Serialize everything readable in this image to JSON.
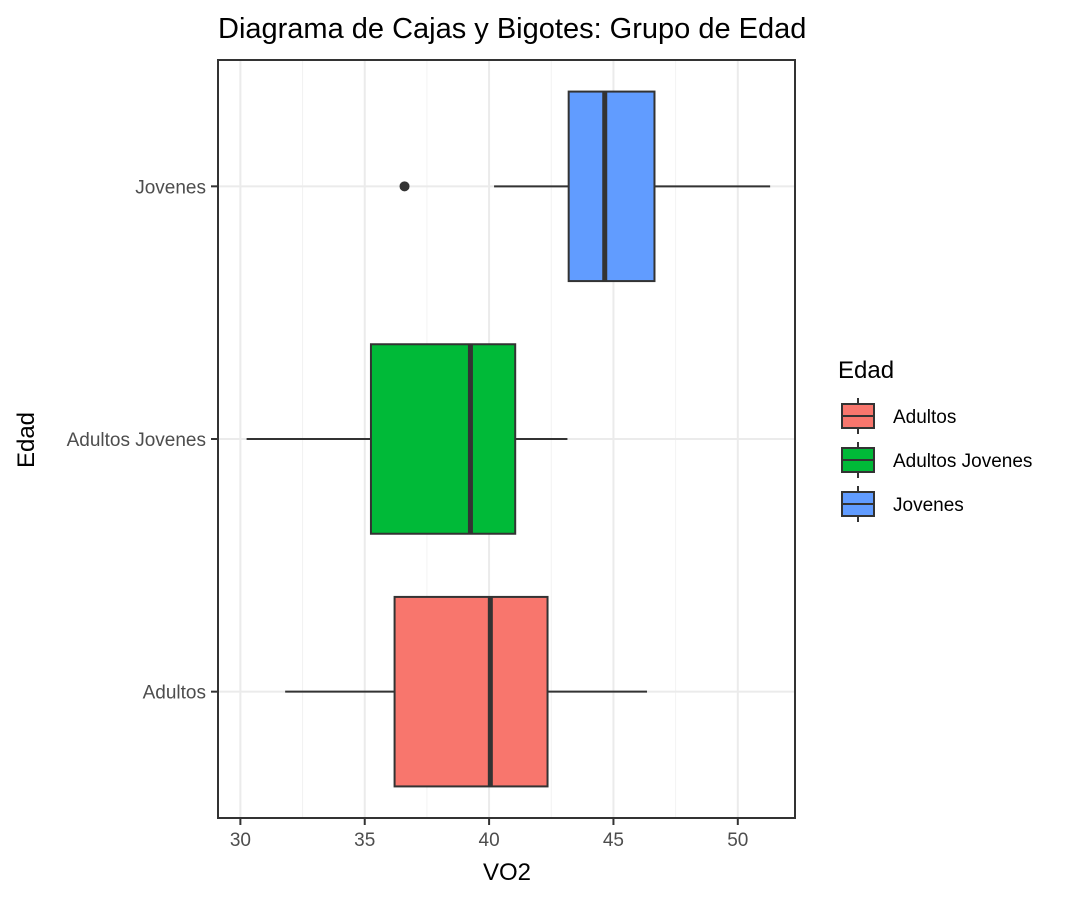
{
  "chart_data": {
    "type": "boxplot",
    "orientation": "horizontal",
    "title": "Diagrama de Cajas y Bigotes: Grupo de Edad",
    "xlabel": "VO2",
    "ylabel": "Edad",
    "xlim": [
      29.1,
      52.3
    ],
    "x_ticks": [
      30,
      35,
      40,
      45,
      50
    ],
    "grid": true,
    "legend": {
      "title": "Edad",
      "position": "right"
    },
    "categories": [
      "Adultos",
      "Adultos Jovenes",
      "Jovenes"
    ],
    "series": [
      {
        "name": "Adultos",
        "color": "#F8766D",
        "whisker_low": 31.8,
        "q1": 36.2,
        "median": 40.05,
        "q3": 42.35,
        "whisker_high": 46.35,
        "outliers": []
      },
      {
        "name": "Adultos Jovenes",
        "color": "#00BA38",
        "whisker_low": 30.25,
        "q1": 35.25,
        "median": 39.25,
        "q3": 41.05,
        "whisker_high": 43.15,
        "outliers": []
      },
      {
        "name": "Jovenes",
        "color": "#619CFF",
        "whisker_low": 40.2,
        "q1": 43.2,
        "median": 44.65,
        "q3": 46.65,
        "whisker_high": 51.3,
        "outliers": [
          36.6
        ]
      }
    ]
  }
}
